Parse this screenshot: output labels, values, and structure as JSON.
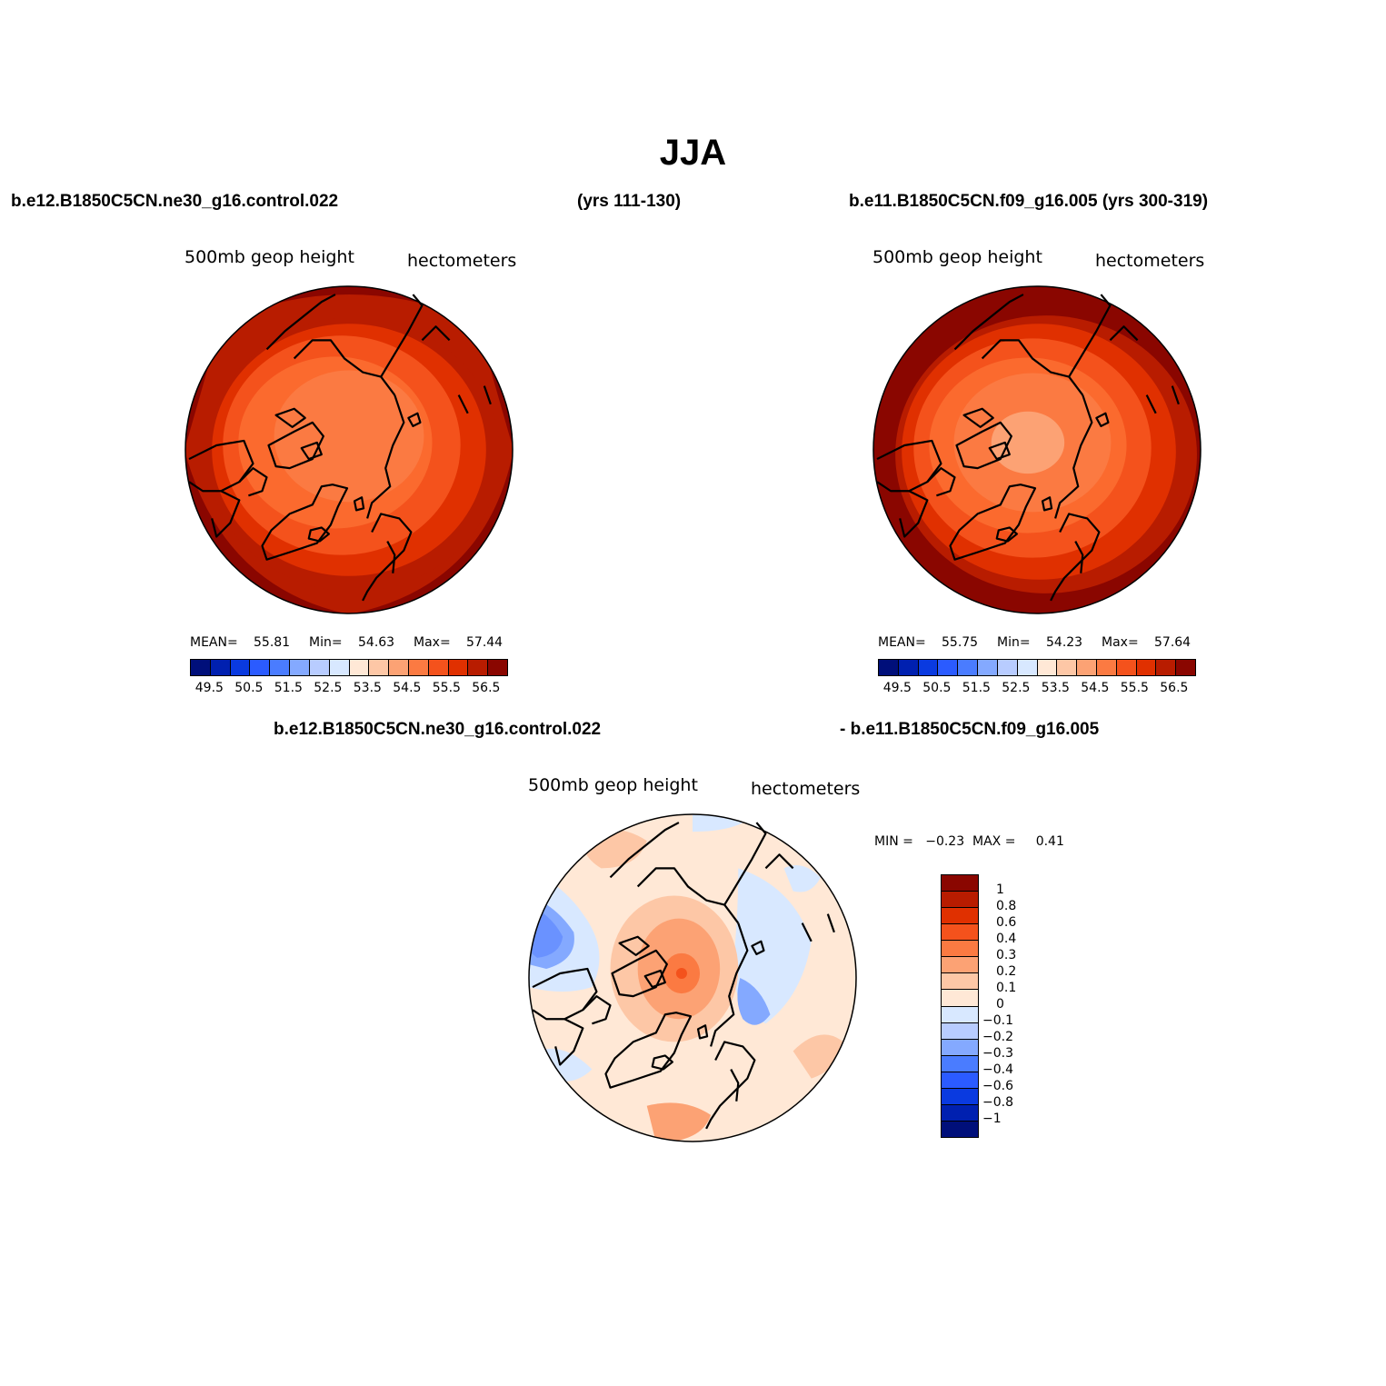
{
  "title": "JJA",
  "panel_left": {
    "case_name": "b.e12.B1850C5CN.ne30_g16.control.022",
    "years": "(yrs 111-130)",
    "variable": "500mb geop height",
    "units": "hectometers",
    "mean_label": "MEAN=",
    "mean_value": "55.81",
    "min_label": "Min=",
    "min_value": "54.63",
    "max_label": "Max=",
    "max_value": "57.44"
  },
  "panel_right": {
    "case_name": "b.e11.B1850C5CN.f09_g16.005 (yrs 300-319)",
    "variable": "500mb geop height",
    "units": "hectometers",
    "mean_label": "MEAN=",
    "mean_value": "55.75",
    "min_label": "Min=",
    "min_value": "54.23",
    "max_label": "Max=",
    "max_value": "57.64"
  },
  "panel_diff": {
    "case_a": "b.e12.B1850C5CN.ne30_g16.control.022",
    "case_b": "- b.e11.B1850C5CN.f09_g16.005",
    "variable": "500mb geop height",
    "units": "hectometers",
    "minmax_text": "MIN =   −0.23  MAX =     0.41"
  },
  "colorbar_abs": {
    "colors": [
      "#000f7a",
      "#0020b0",
      "#0a3ae0",
      "#2b5bff",
      "#4a7cff",
      "#84a9ff",
      "#b8ccff",
      "#d8e8ff",
      "#ffe8d6",
      "#fdc7a6",
      "#fca274",
      "#fb7a42",
      "#f4521c",
      "#e03000",
      "#b81c00",
      "#8a0600"
    ],
    "labels": [
      "49.5",
      "50.5",
      "51.5",
      "52.5",
      "53.5",
      "54.5",
      "55.5",
      "56.5"
    ]
  },
  "colorbar_diff": {
    "colors": [
      "#8a0600",
      "#b81c00",
      "#e03000",
      "#f4521c",
      "#fb7a42",
      "#fca274",
      "#fdc7a6",
      "#ffe8d6",
      "#d8e8ff",
      "#b8ccff",
      "#84a9ff",
      "#4a7cff",
      "#2b5bff",
      "#0a3ae0",
      "#0020b0",
      "#000f7a"
    ],
    "labels": [
      "1",
      "0.8",
      "0.6",
      "0.4",
      "0.3",
      "0.2",
      "0.1",
      "0",
      "−0.1",
      "−0.2",
      "−0.3",
      "−0.4",
      "−0.6",
      "−0.8",
      "−1"
    ]
  }
}
